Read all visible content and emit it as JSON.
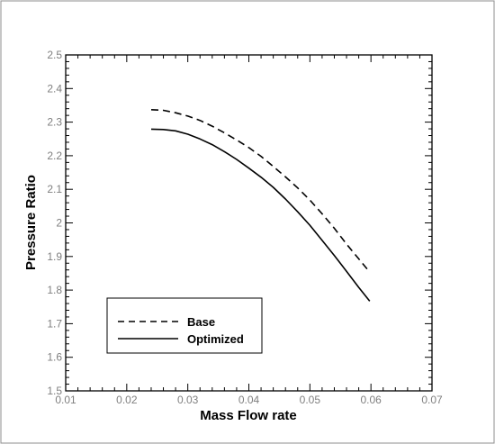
{
  "chart_data": {
    "type": "line",
    "title": "",
    "xlabel": "Mass Flow rate",
    "ylabel": "Pressure Ratio",
    "xlim": [
      0.01,
      0.07
    ],
    "ylim": [
      1.5,
      2.5
    ],
    "xticks": [
      "0.01",
      "0.02",
      "0.03",
      "0.04",
      "0.05",
      "0.06",
      "0.07"
    ],
    "yticks": [
      "1.5",
      "1.6",
      "1.7",
      "1.8",
      "1.9",
      "2",
      "2.1",
      "2.2",
      "2.3",
      "2.4",
      "2.5"
    ],
    "grid": false,
    "legend_position": "bottom-left",
    "series": [
      {
        "name": "Base",
        "style": "dashed",
        "color": "#000000",
        "x": [
          0.024,
          0.026,
          0.028,
          0.03,
          0.032,
          0.034,
          0.036,
          0.038,
          0.04,
          0.042,
          0.044,
          0.046,
          0.048,
          0.05,
          0.052,
          0.054,
          0.056,
          0.058,
          0.0595
        ],
        "y": [
          2.337,
          2.335,
          2.328,
          2.318,
          2.305,
          2.288,
          2.268,
          2.247,
          2.224,
          2.198,
          2.168,
          2.137,
          2.104,
          2.068,
          2.027,
          1.984,
          1.937,
          1.893,
          1.86
        ]
      },
      {
        "name": "Optimized",
        "style": "solid",
        "color": "#000000",
        "x": [
          0.024,
          0.026,
          0.028,
          0.03,
          0.032,
          0.034,
          0.036,
          0.038,
          0.04,
          0.042,
          0.044,
          0.046,
          0.048,
          0.05,
          0.052,
          0.054,
          0.056,
          0.058,
          0.0598
        ],
        "y": [
          2.279,
          2.278,
          2.274,
          2.264,
          2.25,
          2.233,
          2.212,
          2.189,
          2.163,
          2.136,
          2.106,
          2.071,
          2.033,
          1.993,
          1.948,
          1.903,
          1.856,
          1.808,
          1.767
        ]
      }
    ]
  }
}
